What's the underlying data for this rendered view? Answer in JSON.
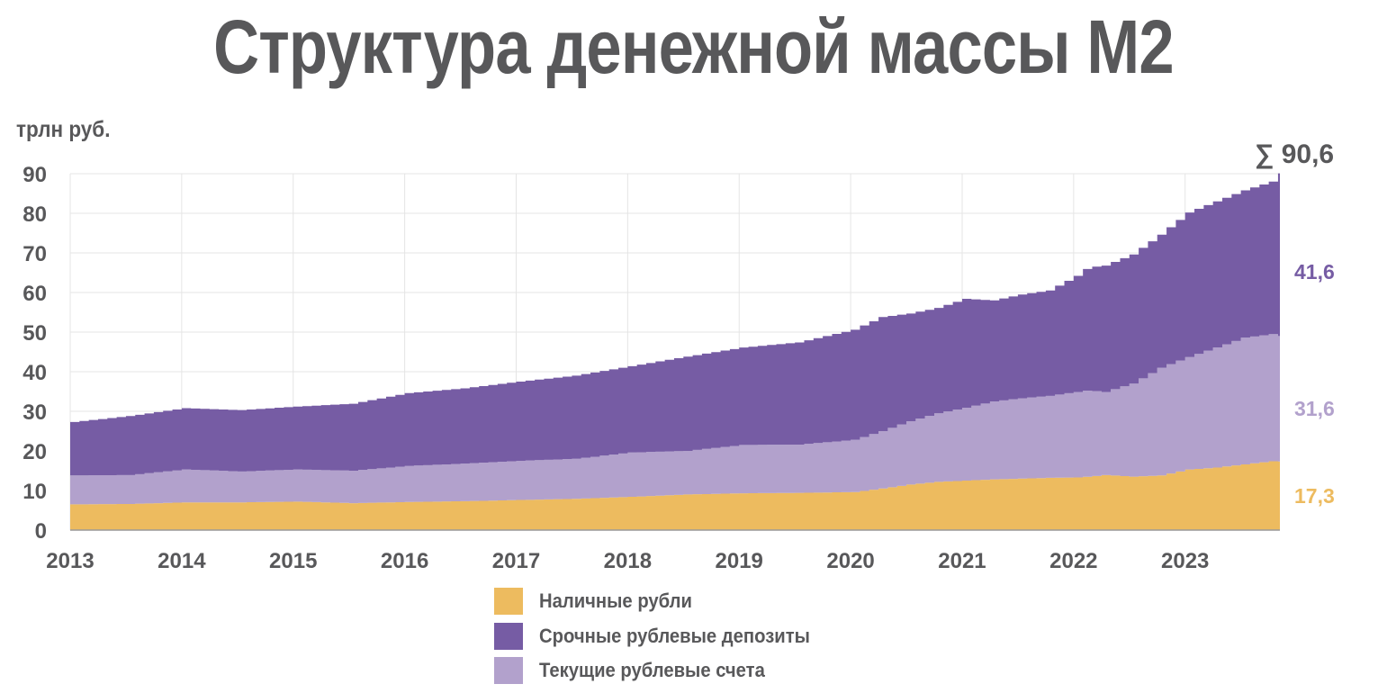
{
  "title": "Структура денежной массы М2",
  "unit_label": "трлн руб.",
  "colors": {
    "cash": "#edbb5f",
    "time_deposits": "#765ca4",
    "current_accounts": "#b2a1cc",
    "text": "#58585a",
    "grid": "#e5e5e5"
  },
  "legend": [
    {
      "label": "Наличные рубли",
      "series": "cash"
    },
    {
      "label": "Срочные рублевые депозиты",
      "series": "time_deposits"
    },
    {
      "label": "Текущие рублевые счета",
      "series": "current_accounts"
    }
  ],
  "end_labels": {
    "total": "∑ 90,6",
    "time_deposits": "41,6",
    "current_accounts": "31,6",
    "cash": "17,3"
  },
  "chart_data": {
    "type": "area",
    "stacked": true,
    "step": true,
    "title": "Структура денежной массы М2",
    "ylabel": "трлн руб.",
    "xlabel": "",
    "ylim": [
      0,
      90
    ],
    "yticks": [
      "0",
      "10",
      "20",
      "30",
      "40",
      "50",
      "60",
      "70",
      "80",
      "90"
    ],
    "xticks": [
      "2013",
      "2014",
      "2015",
      "2016",
      "2017",
      "2018",
      "2019",
      "2020",
      "2021",
      "2022",
      "2023"
    ],
    "xlim": [
      2013.0,
      2023.85
    ],
    "grid": true,
    "legend_position": "bottom",
    "x": [
      2013.0,
      2013.5,
      2014.0,
      2014.5,
      2015.0,
      2015.5,
      2016.0,
      2016.5,
      2017.0,
      2017.5,
      2018.0,
      2018.5,
      2019.0,
      2019.5,
      2020.0,
      2020.25,
      2020.5,
      2020.75,
      2021.0,
      2021.25,
      2021.5,
      2021.75,
      2022.0,
      2022.1,
      2022.25,
      2022.5,
      2022.75,
      2023.0,
      2023.25,
      2023.5,
      2023.75,
      2023.85
    ],
    "series": [
      {
        "name": "Наличные рубли",
        "key": "cash",
        "values": [
          6.5,
          6.6,
          7.0,
          7.0,
          7.2,
          6.8,
          7.1,
          7.3,
          7.6,
          7.9,
          8.4,
          9.0,
          9.3,
          9.4,
          9.6,
          10.5,
          11.5,
          12.2,
          12.5,
          12.8,
          13.0,
          13.2,
          13.3,
          13.5,
          13.9,
          13.5,
          13.8,
          15.3,
          15.8,
          16.6,
          17.4,
          17.3
        ]
      },
      {
        "name": "Текущие рублевые счета",
        "key": "current_accounts",
        "values": [
          7.3,
          7.3,
          8.3,
          7.8,
          8.1,
          8.2,
          9.1,
          9.5,
          9.9,
          10.1,
          11.2,
          11.0,
          12.2,
          12.2,
          13.2,
          14.5,
          16.0,
          17.3,
          18.4,
          19.7,
          20.3,
          20.7,
          21.6,
          21.8,
          21.0,
          23.5,
          27.2,
          28.4,
          30.3,
          32.0,
          32.1,
          31.6
        ]
      },
      {
        "name": "Срочные рублевые депозиты",
        "key": "time_deposits",
        "values": [
          13.5,
          14.9,
          15.5,
          15.5,
          15.9,
          16.9,
          18.4,
          19.0,
          20.0,
          21.0,
          21.8,
          23.8,
          24.6,
          25.8,
          27.8,
          28.8,
          27.2,
          26.6,
          27.5,
          25.5,
          26.2,
          26.6,
          29.3,
          31.0,
          31.9,
          32.6,
          33.6,
          36.5,
          36.9,
          37.2,
          38.5,
          41.6
        ]
      }
    ]
  }
}
